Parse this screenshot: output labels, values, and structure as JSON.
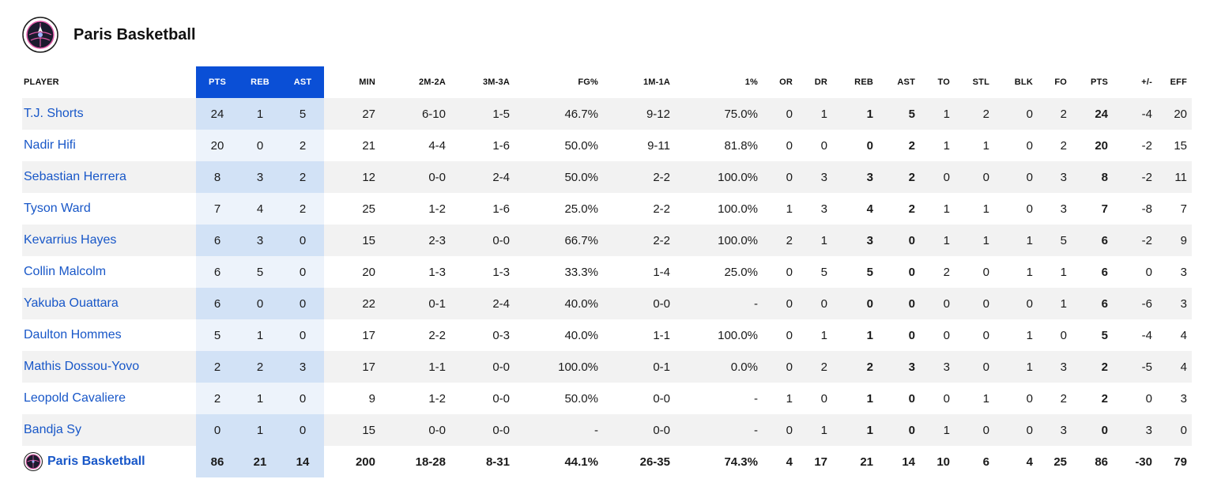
{
  "team": {
    "name": "Paris Basketball",
    "logo_icon": "paris-basketball-logo"
  },
  "columns": [
    "PLAYER",
    "PTS",
    "REB",
    "AST",
    "MIN",
    "2M-2A",
    "3M-3A",
    "FG%",
    "1M-1A",
    "1%",
    "OR",
    "DR",
    "REB",
    "AST",
    "TO",
    "STL",
    "BLK",
    "FO",
    "PTS",
    "+/-",
    "EFF"
  ],
  "players": [
    [
      "T.J. Shorts",
      "24",
      "1",
      "5",
      "27",
      "6-10",
      "1-5",
      "46.7%",
      "9-12",
      "75.0%",
      "0",
      "1",
      "1",
      "5",
      "1",
      "2",
      "0",
      "2",
      "24",
      "-4",
      "20"
    ],
    [
      "Nadir Hifi",
      "20",
      "0",
      "2",
      "21",
      "4-4",
      "1-6",
      "50.0%",
      "9-11",
      "81.8%",
      "0",
      "0",
      "0",
      "2",
      "1",
      "1",
      "0",
      "2",
      "20",
      "-2",
      "15"
    ],
    [
      "Sebastian Herrera",
      "8",
      "3",
      "2",
      "12",
      "0-0",
      "2-4",
      "50.0%",
      "2-2",
      "100.0%",
      "0",
      "3",
      "3",
      "2",
      "0",
      "0",
      "0",
      "3",
      "8",
      "-2",
      "11"
    ],
    [
      "Tyson Ward",
      "7",
      "4",
      "2",
      "25",
      "1-2",
      "1-6",
      "25.0%",
      "2-2",
      "100.0%",
      "1",
      "3",
      "4",
      "2",
      "1",
      "1",
      "0",
      "3",
      "7",
      "-8",
      "7"
    ],
    [
      "Kevarrius Hayes",
      "6",
      "3",
      "0",
      "15",
      "2-3",
      "0-0",
      "66.7%",
      "2-2",
      "100.0%",
      "2",
      "1",
      "3",
      "0",
      "1",
      "1",
      "1",
      "5",
      "6",
      "-2",
      "9"
    ],
    [
      "Collin Malcolm",
      "6",
      "5",
      "0",
      "20",
      "1-3",
      "1-3",
      "33.3%",
      "1-4",
      "25.0%",
      "0",
      "5",
      "5",
      "0",
      "2",
      "0",
      "1",
      "1",
      "6",
      "0",
      "3"
    ],
    [
      "Yakuba Ouattara",
      "6",
      "0",
      "0",
      "22",
      "0-1",
      "2-4",
      "40.0%",
      "0-0",
      "-",
      "0",
      "0",
      "0",
      "0",
      "0",
      "0",
      "0",
      "1",
      "6",
      "-6",
      "3"
    ],
    [
      "Daulton Hommes",
      "5",
      "1",
      "0",
      "17",
      "2-2",
      "0-3",
      "40.0%",
      "1-1",
      "100.0%",
      "0",
      "1",
      "1",
      "0",
      "0",
      "0",
      "1",
      "0",
      "5",
      "-4",
      "4"
    ],
    [
      "Mathis Dossou-Yovo",
      "2",
      "2",
      "3",
      "17",
      "1-1",
      "0-0",
      "100.0%",
      "0-1",
      "0.0%",
      "0",
      "2",
      "2",
      "3",
      "3",
      "0",
      "1",
      "3",
      "2",
      "-5",
      "4"
    ],
    [
      "Leopold Cavaliere",
      "2",
      "1",
      "0",
      "9",
      "1-2",
      "0-0",
      "50.0%",
      "0-0",
      "-",
      "1",
      "0",
      "1",
      "0",
      "0",
      "1",
      "0",
      "2",
      "2",
      "0",
      "3"
    ],
    [
      "Bandja Sy",
      "0",
      "1",
      "0",
      "15",
      "0-0",
      "0-0",
      "-",
      "0-0",
      "-",
      "0",
      "1",
      "1",
      "0",
      "1",
      "0",
      "0",
      "3",
      "0",
      "3",
      "0"
    ]
  ],
  "totals": [
    "Paris Basketball",
    "86",
    "21",
    "14",
    "200",
    "18-28",
    "8-31",
    "44.1%",
    "26-35",
    "74.3%",
    "4",
    "17",
    "21",
    "14",
    "10",
    "6",
    "4",
    "25",
    "86",
    "-30",
    "79"
  ],
  "colors": {
    "highlight_header": "#0a4fd6",
    "highlight_cell": "#d2e2f6",
    "link": "#1857c8",
    "row_alt": "#f2f2f2"
  }
}
